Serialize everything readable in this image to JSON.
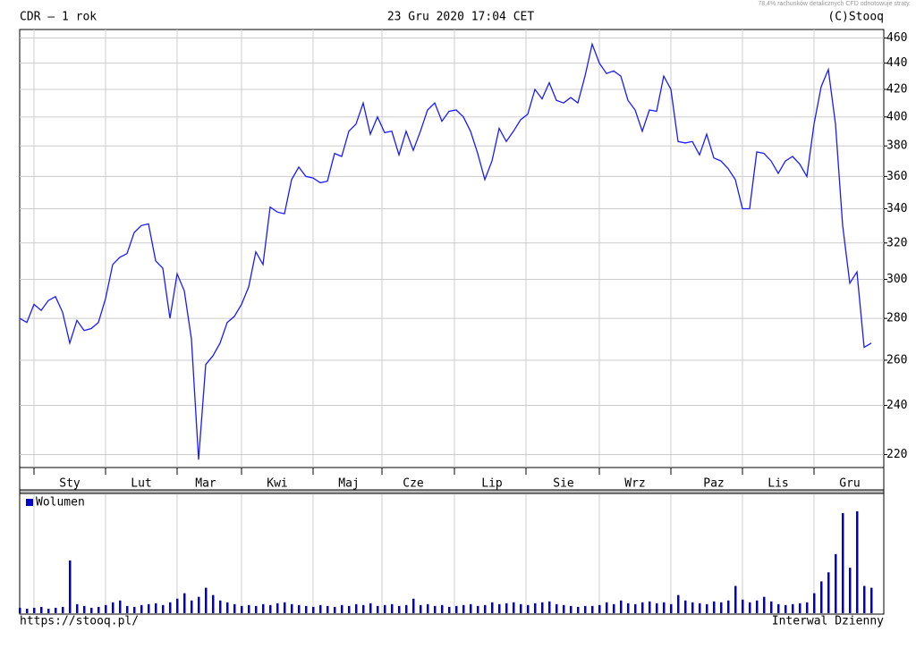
{
  "header": {
    "title": "CDR – 1 rok",
    "date": "23 Gru 2020 17:04 CET",
    "copyright": "(C)Stooq",
    "disclaimer": "78,4% rachunków detalicznych CFD odnotowuje straty."
  },
  "chart_data": [
    {
      "type": "line",
      "color": "#1a1aff",
      "log_scale": true,
      "grid": true,
      "ylim": [
        215,
        467
      ],
      "yticks": [
        220,
        240,
        260,
        280,
        300,
        320,
        340,
        360,
        380,
        400,
        420,
        440,
        460
      ],
      "categories": [
        null,
        null,
        null,
        null,
        null,
        null,
        null,
        "Sty",
        null,
        null,
        null,
        null,
        null,
        null,
        null,
        null,
        null,
        "Lut",
        null,
        null,
        null,
        null,
        null,
        null,
        null,
        null,
        "Mar",
        null,
        null,
        null,
        null,
        null,
        null,
        null,
        null,
        null,
        "Kwi",
        null,
        null,
        null,
        null,
        null,
        null,
        null,
        null,
        null,
        "Maj",
        null,
        null,
        null,
        null,
        null,
        null,
        null,
        null,
        "Cze",
        null,
        null,
        null,
        null,
        null,
        null,
        null,
        null,
        null,
        null,
        "Lip",
        null,
        null,
        null,
        null,
        null,
        null,
        null,
        null,
        null,
        "Sie",
        null,
        null,
        null,
        null,
        null,
        null,
        null,
        null,
        null,
        "Wrz",
        null,
        null,
        null,
        null,
        null,
        null,
        null,
        null,
        null,
        null,
        "Paz",
        null,
        null,
        null,
        null,
        null,
        null,
        null,
        null,
        "Lis",
        null,
        null,
        null,
        null,
        null,
        null,
        null,
        null,
        null,
        "Gru",
        null,
        null,
        null
      ],
      "values": [
        280,
        278,
        287,
        284,
        289,
        291,
        283,
        268,
        279,
        274,
        275,
        278,
        290,
        308,
        312,
        314,
        326,
        330,
        331,
        310,
        306,
        280,
        303,
        294,
        270,
        218,
        258,
        262,
        268,
        278,
        281,
        287,
        296,
        315,
        308,
        341,
        338,
        337,
        358,
        366,
        360,
        359,
        356,
        357,
        375,
        373,
        390,
        395,
        410,
        388,
        400,
        389,
        390,
        374,
        390,
        377,
        390,
        405,
        410,
        397,
        404,
        405,
        400,
        390,
        375,
        358,
        370,
        392,
        383,
        390,
        398,
        402,
        420,
        413,
        425,
        412,
        410,
        414,
        410,
        430,
        455,
        440,
        432,
        434,
        430,
        412,
        405,
        390,
        405,
        404,
        430,
        420,
        383,
        382,
        383,
        374,
        388,
        372,
        370,
        365,
        358,
        340,
        340,
        376,
        375,
        370,
        362,
        370,
        373,
        368,
        360,
        395,
        422,
        435,
        395,
        330,
        298,
        304,
        266,
        268
      ]
    },
    {
      "type": "bar",
      "series": [
        {
          "name": "Wolumen",
          "color": "#0000cc",
          "values": [
            6,
            5,
            6,
            7,
            5,
            6,
            7,
            58,
            10,
            8,
            6,
            7,
            9,
            12,
            14,
            8,
            7,
            9,
            10,
            11,
            9,
            12,
            16,
            22,
            14,
            18,
            28,
            20,
            14,
            12,
            10,
            8,
            9,
            8,
            10,
            9,
            11,
            12,
            10,
            9,
            8,
            7,
            9,
            8,
            7,
            9,
            8,
            10,
            9,
            11,
            8,
            9,
            10,
            8,
            9,
            16,
            9,
            10,
            8,
            9,
            7,
            8,
            9,
            10,
            8,
            9,
            12,
            10,
            11,
            12,
            10,
            9,
            11,
            12,
            13,
            10,
            9,
            8,
            7,
            8,
            8,
            9,
            12,
            10,
            14,
            11,
            10,
            12,
            13,
            11,
            12,
            10,
            20,
            14,
            12,
            11,
            10,
            13,
            12,
            14,
            30,
            15,
            12,
            14,
            18,
            13,
            10,
            9,
            10,
            11,
            12,
            22,
            35,
            45,
            65,
            110,
            50,
            112,
            30,
            28
          ]
        }
      ]
    }
  ],
  "footer": {
    "url": "https://stooq.pl/",
    "interval": "Interwal Dzienny"
  }
}
